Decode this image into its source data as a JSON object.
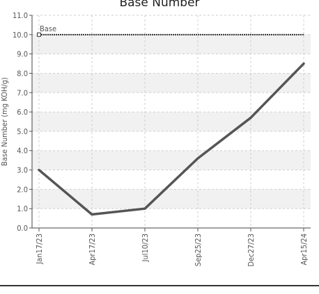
{
  "chart_data": {
    "type": "line",
    "title": "Base Number",
    "ylabel": "Base Number (mg KOH/g)",
    "xlabel": "",
    "ylim": [
      0,
      11
    ],
    "y_ticks": [
      "0.0",
      "1.0",
      "2.0",
      "3.0",
      "4.0",
      "5.0",
      "6.0",
      "7.0",
      "8.0",
      "9.0",
      "10.0",
      "11.0"
    ],
    "categories": [
      "Jan17/23",
      "Apr17/23",
      "Jul10/23",
      "Sep25/23",
      "Dec27/23",
      "Apr15/24"
    ],
    "series": [
      {
        "values": [
          3.0,
          0.7,
          1.0,
          3.6,
          5.7,
          8.5
        ],
        "color": "#555555"
      }
    ],
    "reference_line": {
      "label": "Base",
      "value": 10.0,
      "color": "#333333"
    },
    "grid": true
  }
}
